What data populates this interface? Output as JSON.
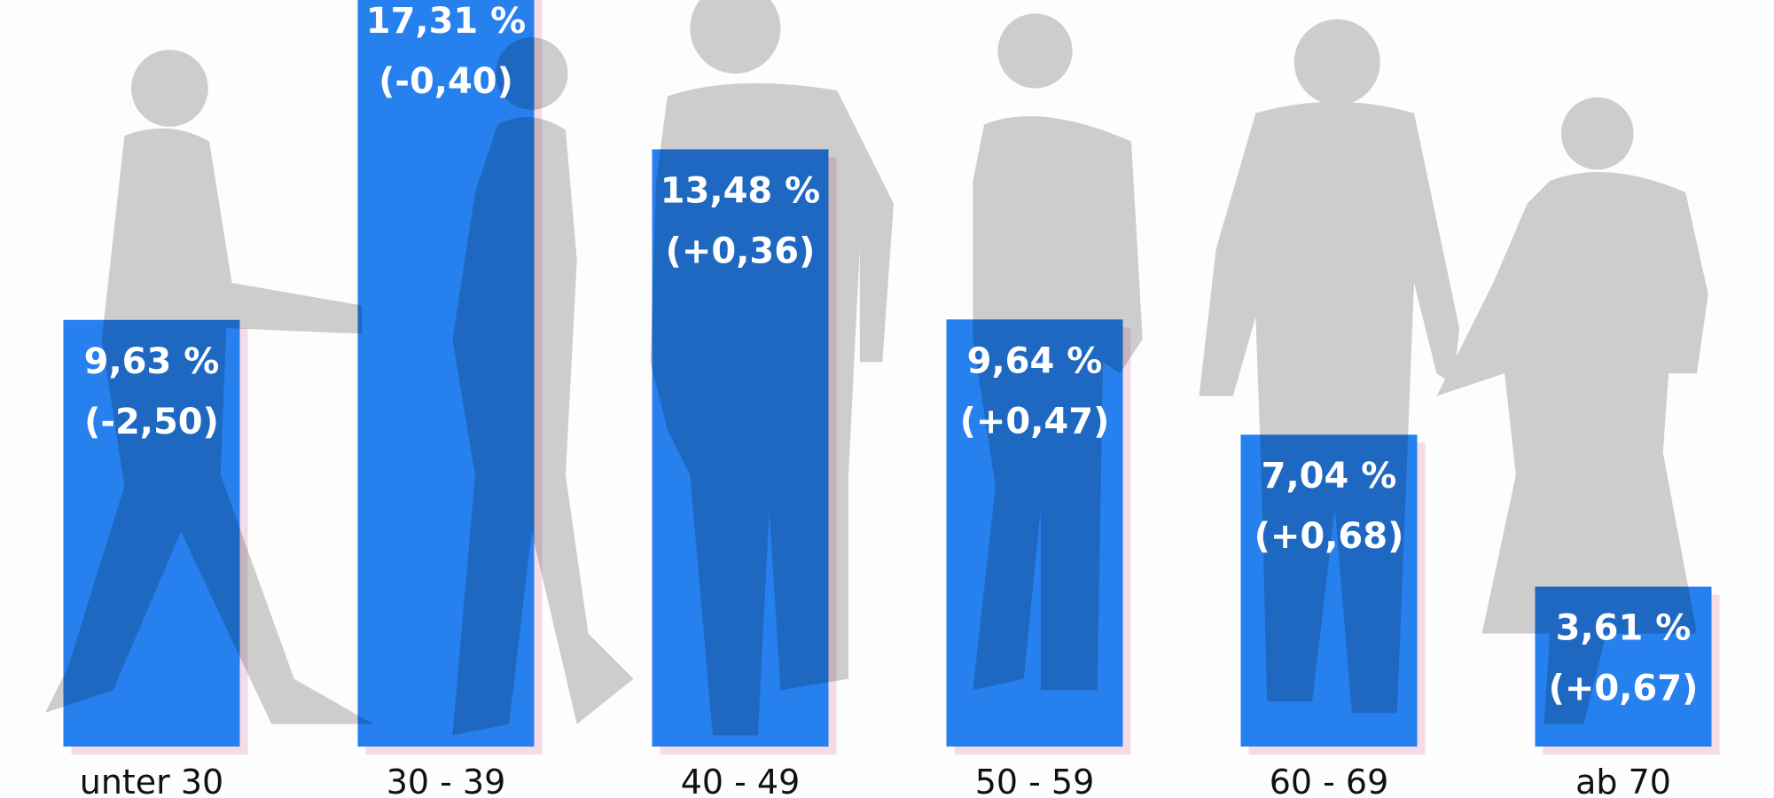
{
  "chart_data": {
    "type": "bar",
    "categories": [
      "unter 30",
      "30 - 39",
      "40 - 49",
      "50 - 59",
      "60 - 69",
      "ab 70"
    ],
    "values": [
      9.63,
      17.31,
      13.48,
      9.64,
      7.04,
      3.61
    ],
    "value_labels": [
      "9,63 %",
      "17,31 %",
      "13,48 %",
      "9,64 %",
      "7,04 %",
      "3,61 %"
    ],
    "changes": [
      -2.5,
      -0.4,
      0.36,
      0.47,
      0.68,
      0.67
    ],
    "change_labels": [
      "(-2,50)",
      "(-0,40)",
      "(+0,36)",
      "(+0,47)",
      "(+0,68)",
      "(+0,67)"
    ],
    "color": "#2680ee",
    "ylim": [
      0,
      16.85
    ]
  }
}
